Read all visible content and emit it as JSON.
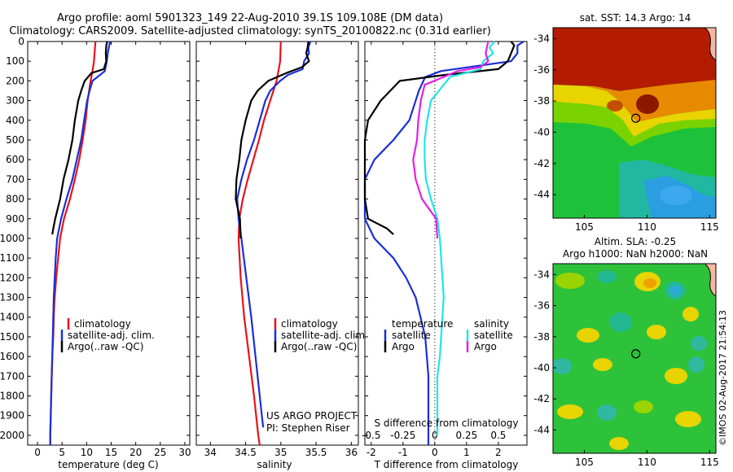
{
  "title_line1": "Argo profile: aoml 5901323_149 22-Aug-2010 39.1S 109.108E (DM data)",
  "title_line2": "Climatology: CARS2009. Satellite-adjusted climatology: synTS_20100822.nc (0.31d earlier)",
  "credit": "©IMOS 02-Aug-2017 21:54:13",
  "colors": {
    "clim": "#e8121b",
    "sat": "#1a2fd6",
    "argo": "#000000",
    "sal_sat": "#22e5e5",
    "sal_argo": "#e51fe5"
  },
  "depth_ticks": [
    0,
    100,
    200,
    300,
    400,
    500,
    600,
    700,
    800,
    900,
    1000,
    1100,
    1200,
    1300,
    1400,
    1500,
    1600,
    1700,
    1800,
    1900,
    2000
  ],
  "panels": {
    "temperature": {
      "xlabel": "temperature (deg C)",
      "xticks": [
        0,
        5,
        10,
        15,
        20,
        25,
        30
      ],
      "legend": [
        "climatology",
        "satellite-adj. clim.",
        "Argo(..raw -QC)"
      ]
    },
    "salinity": {
      "xlabel": "salinity",
      "xticks": [
        34,
        34.5,
        35,
        35.5,
        36
      ],
      "legend": [
        "climatology",
        "satellite-adj. clim.",
        "Argo(..raw -QC)"
      ],
      "note1": "US ARGO PROJECT",
      "note2": "PI: Stephen Riser"
    },
    "difference": {
      "xlabel": "T difference from climatology",
      "top_axis_label": "S difference from climatology",
      "xticks_T": [
        -2,
        -1,
        0,
        1,
        2
      ],
      "xticks_S": [
        "-0.5",
        "-0.25",
        "0",
        "0.25",
        "0.5"
      ],
      "legend_temp_header": "temperature",
      "legend_sal_header": "salinity",
      "legend_temp": [
        "satellite",
        "Argo"
      ],
      "legend_sal": [
        "satellite",
        "Argo"
      ]
    }
  },
  "maps": {
    "sst": {
      "title": "sat. SST: 14.3 Argo: 14",
      "xticks": [
        105,
        110,
        115
      ],
      "yticks": [
        -34,
        -36,
        -38,
        -40,
        -42,
        -44
      ]
    },
    "sla": {
      "title1": "Altim. SLA: -0.25",
      "title2": "Argo h1000: NaN h2000: NaN",
      "xticks": [
        105,
        110,
        115
      ],
      "yticks": [
        -34,
        -36,
        -38,
        -40,
        -42,
        -44
      ]
    }
  },
  "chart_data": [
    {
      "type": "line",
      "xlabel": "temperature (deg C)",
      "ylabel": "",
      "xlim": [
        -2,
        31
      ],
      "ylim": [
        2050,
        0
      ],
      "series": [
        {
          "name": "climatology",
          "depth": [
            0,
            100,
            150,
            200,
            300,
            400,
            500,
            600,
            700,
            800,
            900,
            1000,
            1100,
            1200,
            1300,
            1400,
            1500,
            1600,
            1700,
            1800,
            1900,
            2000,
            2050
          ],
          "values": [
            11.8,
            11.5,
            11.2,
            10.8,
            10.2,
            9.8,
            9.2,
            8.5,
            7.6,
            6.6,
            5.4,
            4.6,
            4.2,
            3.8,
            3.5,
            3.3,
            3.2,
            3.0,
            2.9,
            2.8,
            2.7,
            2.6,
            2.6
          ]
        },
        {
          "name": "satellite-adj. clim.",
          "depth": [
            0,
            20,
            60,
            100,
            150,
            200,
            250,
            300,
            400,
            500,
            600,
            700,
            800,
            900,
            1000,
            1100,
            1200,
            1300,
            1400,
            1500,
            1600,
            1700,
            1800,
            1900,
            2000,
            2050
          ],
          "values": [
            14.8,
            14.6,
            14.3,
            14.1,
            13.7,
            11.2,
            10.6,
            10.1,
            9.5,
            8.9,
            8.0,
            7.1,
            5.9,
            4.8,
            4.0,
            3.7,
            3.5,
            3.3,
            3.2,
            3.1,
            3.0,
            2.9,
            2.8,
            2.7,
            2.6,
            2.6
          ]
        },
        {
          "name": "Argo(..raw -QC)",
          "depth": [
            0,
            20,
            60,
            100,
            140,
            160,
            200,
            250,
            300,
            400,
            500,
            600,
            700,
            800,
            900,
            950,
            980
          ],
          "values": [
            14.2,
            14.0,
            13.9,
            14.0,
            13.5,
            11.0,
            9.6,
            8.9,
            8.3,
            7.6,
            7.1,
            6.3,
            5.3,
            4.6,
            3.6,
            3.2,
            3.0
          ]
        }
      ]
    },
    {
      "type": "line",
      "xlabel": "salinity",
      "ylabel": "",
      "xlim": [
        33.8,
        36.1
      ],
      "ylim": [
        2050,
        0
      ],
      "series": [
        {
          "name": "climatology",
          "depth": [
            0,
            100,
            200,
            300,
            400,
            500,
            600,
            700,
            800,
            900,
            1000,
            1200,
            1400,
            1600,
            1800,
            2000,
            2050
          ],
          "values": [
            35.0,
            34.99,
            34.94,
            34.85,
            34.76,
            34.69,
            34.61,
            34.53,
            34.46,
            34.41,
            34.4,
            34.43,
            34.48,
            34.55,
            34.62,
            34.68,
            34.7
          ]
        },
        {
          "name": "satellite-adj. clim.",
          "depth": [
            0,
            30,
            60,
            100,
            140,
            170,
            200,
            250,
            300,
            400,
            500,
            600,
            700,
            800,
            900,
            1000,
            1200,
            1400,
            1600,
            1800,
            1900,
            1960
          ],
          "values": [
            35.42,
            35.39,
            35.4,
            35.33,
            35.31,
            35.1,
            34.99,
            34.85,
            34.78,
            34.7,
            34.62,
            34.52,
            34.44,
            34.38,
            34.4,
            34.44,
            34.51,
            34.58,
            34.64,
            34.7,
            34.73,
            34.75
          ]
        },
        {
          "name": "Argo(..raw -QC)",
          "depth": [
            0,
            30,
            60,
            100,
            130,
            160,
            200,
            250,
            300,
            400,
            500,
            600,
            700,
            800,
            900,
            1000
          ],
          "values": [
            35.39,
            35.38,
            35.36,
            35.4,
            35.3,
            35.08,
            34.82,
            34.67,
            34.58,
            34.5,
            34.44,
            34.41,
            34.37,
            34.36,
            34.42,
            34.43
          ]
        }
      ]
    },
    {
      "type": "line",
      "xlabel": "T difference from climatology",
      "ylabel": "",
      "xlim": [
        -2.2,
        2.9
      ],
      "ylim": [
        2050,
        0
      ],
      "series": [
        {
          "name": "temperature satellite",
          "depth": [
            0,
            20,
            60,
            100,
            150,
            180,
            250,
            300,
            400,
            500,
            600,
            700,
            800,
            900,
            1000,
            1100,
            1200,
            1300,
            1400,
            1500,
            1600,
            1700,
            1800,
            1900,
            2000,
            2050
          ],
          "values": [
            2.8,
            2.6,
            2.6,
            2.4,
            0.2,
            -0.3,
            -0.5,
            -0.6,
            -0.8,
            -1.3,
            -1.9,
            -2.4,
            -2.6,
            -2.4,
            -1.9,
            -1.3,
            -0.9,
            -0.6,
            -0.45,
            -0.3,
            -0.25,
            -0.2,
            -0.2,
            -0.2,
            -0.2,
            -0.2
          ]
        },
        {
          "name": "temperature Argo",
          "depth": [
            0,
            20,
            60,
            100,
            140,
            170,
            200,
            250,
            300,
            400,
            500,
            600,
            700,
            800,
            900,
            950,
            980
          ],
          "values": [
            2.4,
            2.5,
            2.4,
            2.3,
            2.0,
            0.3,
            -1.1,
            -1.4,
            -1.7,
            -2.1,
            -2.2,
            -2.2,
            -2.4,
            -2.2,
            -2.1,
            -1.5,
            -1.3
          ]
        },
        {
          "name": "salinity satellite",
          "depth": [
            0,
            30,
            60,
            100,
            140,
            180,
            220,
            260,
            300,
            400,
            500,
            600,
            700,
            800,
            900,
            1000,
            1100,
            1200,
            1300,
            1400,
            1500,
            1600,
            1700,
            1800,
            1900,
            2000
          ],
          "values": [
            0.47,
            0.43,
            0.46,
            0.38,
            0.36,
            0.12,
            0.07,
            0.02,
            -0.03,
            -0.06,
            -0.08,
            -0.08,
            -0.07,
            -0.03,
            0.02,
            0.04,
            0.05,
            0.06,
            0.07,
            0.06,
            0.05,
            0.04,
            0.02,
            0.02,
            0.02,
            0.02
          ]
        },
        {
          "name": "salinity Argo",
          "depth": [
            0,
            30,
            60,
            100,
            130,
            150,
            180,
            220,
            300,
            400,
            500,
            600,
            700,
            800,
            900,
            1000
          ],
          "values": [
            0.42,
            0.41,
            0.4,
            0.42,
            0.36,
            0.18,
            0.07,
            -0.08,
            -0.11,
            -0.13,
            -0.14,
            -0.17,
            -0.15,
            -0.1,
            0.01,
            0.02
          ]
        }
      ]
    },
    {
      "type": "heatmap",
      "title": "sat. SST: 14.3 Argo: 14",
      "xlim": [
        102.5,
        115.5
      ],
      "ylim": [
        -45.5,
        -33.3
      ],
      "argo_location": {
        "lon": 109.108,
        "lat": -39.1
      }
    },
    {
      "type": "heatmap",
      "title": "Altim. SLA: -0.25",
      "xlim": [
        102.5,
        115.5
      ],
      "ylim": [
        -45.5,
        -33.3
      ],
      "argo_location": {
        "lon": 109.108,
        "lat": -39.1
      }
    }
  ]
}
